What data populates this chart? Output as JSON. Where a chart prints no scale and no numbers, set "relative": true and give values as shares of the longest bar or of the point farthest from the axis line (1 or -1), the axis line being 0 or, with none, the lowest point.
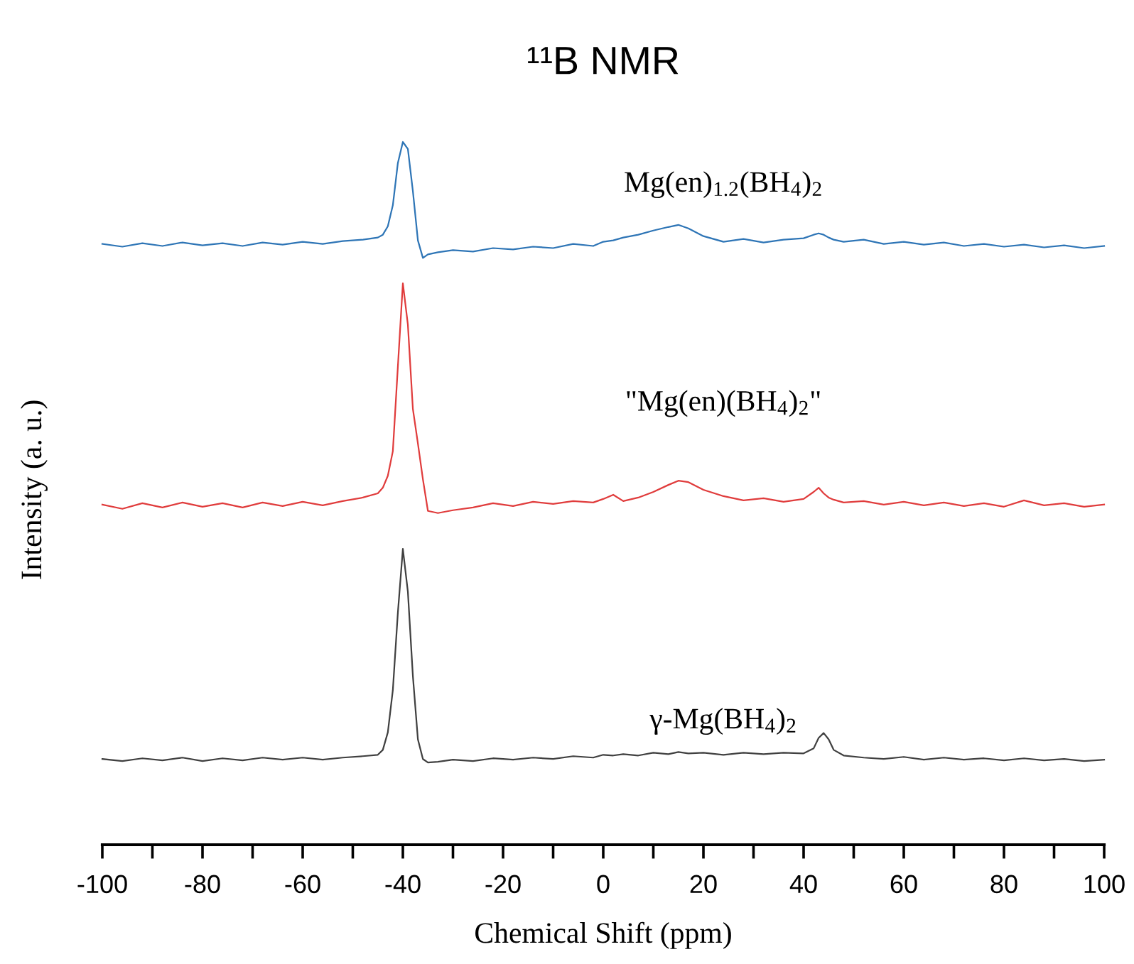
{
  "chart_data": {
    "type": "line",
    "title": "¹¹B NMR",
    "xlabel": "Chemical Shift (ppm)",
    "ylabel": "Intensity (a. u.)",
    "relative": true,
    "grid": false,
    "legend": false,
    "marker": "none",
    "line_style": "solid",
    "xlim": [
      -100,
      100
    ],
    "xticks": [
      -100,
      {
        "value": -90,
        "label": null
      },
      -80,
      {
        "value": -70,
        "label": null
      },
      -60,
      {
        "value": -50,
        "label": null
      },
      -40,
      {
        "value": -30,
        "label": null
      },
      -20,
      {
        "value": -10,
        "label": null
      },
      0,
      {
        "value": 10,
        "label": null
      },
      20,
      {
        "value": 30,
        "label": null
      },
      40,
      {
        "value": 50,
        "label": null
      },
      60,
      {
        "value": 70,
        "label": null
      },
      80,
      {
        "value": 90,
        "label": null
      },
      100
    ],
    "x": [
      -100,
      -96,
      -92,
      -88,
      -84,
      -80,
      -76,
      -72,
      -68,
      -64,
      -60,
      -56,
      -52,
      -48,
      -45,
      -44,
      -43,
      -42,
      -41,
      -40,
      -39,
      -38,
      -37,
      -36,
      -35,
      -33,
      -30,
      -26,
      -22,
      -18,
      -14,
      -10,
      -6,
      -2,
      0,
      2,
      4,
      7,
      10,
      13,
      15,
      17,
      20,
      24,
      28,
      32,
      36,
      40,
      42,
      43,
      44,
      45,
      46,
      48,
      52,
      56,
      60,
      64,
      68,
      72,
      76,
      80,
      84,
      88,
      92,
      96,
      100
    ],
    "series": [
      {
        "name": "Mg(en)$_{1.2}$(BH$_{4}$)$_{2}$",
        "color": "#2e75b6",
        "values": [
          0.855,
          0.851,
          0.856,
          0.852,
          0.857,
          0.853,
          0.856,
          0.852,
          0.857,
          0.854,
          0.858,
          0.855,
          0.859,
          0.861,
          0.864,
          0.868,
          0.88,
          0.91,
          0.97,
          1.0,
          0.99,
          0.93,
          0.86,
          0.835,
          0.84,
          0.843,
          0.846,
          0.844,
          0.849,
          0.847,
          0.851,
          0.849,
          0.855,
          0.852,
          0.858,
          0.86,
          0.864,
          0.868,
          0.874,
          0.879,
          0.882,
          0.877,
          0.866,
          0.858,
          0.862,
          0.857,
          0.861,
          0.863,
          0.868,
          0.87,
          0.868,
          0.864,
          0.861,
          0.858,
          0.861,
          0.855,
          0.858,
          0.854,
          0.857,
          0.852,
          0.855,
          0.851,
          0.854,
          0.85,
          0.853,
          0.849,
          0.852
        ]
      },
      {
        "name": "\"Mg(en)(BH$_{4}$)$_{2}$\"",
        "color": "#e03c3c",
        "values": [
          0.484,
          0.478,
          0.486,
          0.48,
          0.487,
          0.481,
          0.486,
          0.48,
          0.487,
          0.482,
          0.488,
          0.483,
          0.489,
          0.494,
          0.5,
          0.508,
          0.525,
          0.56,
          0.68,
          0.799,
          0.74,
          0.62,
          0.571,
          0.52,
          0.475,
          0.472,
          0.476,
          0.48,
          0.486,
          0.482,
          0.488,
          0.485,
          0.489,
          0.487,
          0.492,
          0.498,
          0.489,
          0.494,
          0.502,
          0.512,
          0.518,
          0.516,
          0.505,
          0.496,
          0.49,
          0.493,
          0.488,
          0.492,
          0.502,
          0.508,
          0.5,
          0.494,
          0.491,
          0.487,
          0.489,
          0.484,
          0.488,
          0.483,
          0.487,
          0.482,
          0.486,
          0.481,
          0.49,
          0.483,
          0.486,
          0.481,
          0.484
        ]
      },
      {
        "name": "γ-Mg(BH$_{4}$)$_{2}$",
        "color": "#404040",
        "values": [
          0.122,
          0.119,
          0.123,
          0.12,
          0.124,
          0.119,
          0.123,
          0.12,
          0.124,
          0.121,
          0.124,
          0.121,
          0.124,
          0.126,
          0.128,
          0.135,
          0.16,
          0.22,
          0.33,
          0.421,
          0.36,
          0.24,
          0.15,
          0.122,
          0.117,
          0.118,
          0.121,
          0.119,
          0.123,
          0.121,
          0.124,
          0.122,
          0.126,
          0.124,
          0.128,
          0.127,
          0.129,
          0.127,
          0.131,
          0.129,
          0.132,
          0.13,
          0.131,
          0.128,
          0.131,
          0.129,
          0.131,
          0.13,
          0.137,
          0.152,
          0.159,
          0.15,
          0.135,
          0.127,
          0.124,
          0.122,
          0.125,
          0.121,
          0.124,
          0.121,
          0.123,
          0.12,
          0.123,
          0.12,
          0.122,
          0.119,
          0.121
        ]
      }
    ]
  }
}
